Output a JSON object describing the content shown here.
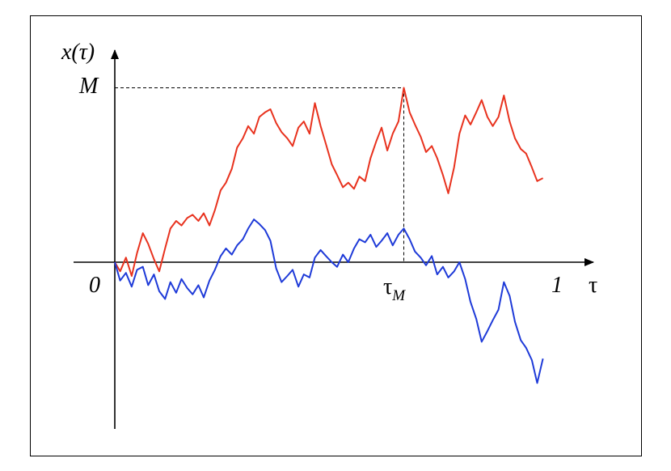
{
  "labels": {
    "y_axis": "x(τ)",
    "max": "M",
    "origin": "0",
    "x_end": "1",
    "x_axis": "τ",
    "tau_m_main": "τ",
    "tau_m_sub": "M"
  },
  "colors": {
    "red_path": "#e8321e",
    "blue_path": "#1e3ad8",
    "axes": "#000000"
  },
  "chart_data": {
    "type": "line",
    "xlim": [
      0,
      1
    ],
    "x_ticks": [
      "0",
      "1"
    ],
    "y_marks": [
      "M"
    ],
    "grid": false,
    "legend": "none",
    "series": [
      {
        "values": [
          [
            0.0,
            0.0
          ],
          [
            0.012,
            -0.06
          ],
          [
            0.025,
            0.03
          ],
          [
            0.038,
            -0.09
          ],
          [
            0.05,
            0.06
          ],
          [
            0.063,
            0.19
          ],
          [
            0.075,
            0.12
          ],
          [
            0.088,
            0.02
          ],
          [
            0.1,
            -0.06
          ],
          [
            0.113,
            0.09
          ],
          [
            0.125,
            0.22
          ],
          [
            0.138,
            0.27
          ],
          [
            0.15,
            0.24
          ],
          [
            0.163,
            0.29
          ],
          [
            0.175,
            0.31
          ],
          [
            0.188,
            0.27
          ],
          [
            0.2,
            0.32
          ],
          [
            0.213,
            0.24
          ],
          [
            0.225,
            0.34
          ],
          [
            0.238,
            0.47
          ],
          [
            0.25,
            0.52
          ],
          [
            0.263,
            0.61
          ],
          [
            0.275,
            0.75
          ],
          [
            0.288,
            0.81
          ],
          [
            0.3,
            0.89
          ],
          [
            0.313,
            0.84
          ],
          [
            0.325,
            0.95
          ],
          [
            0.338,
            0.98
          ],
          [
            0.35,
            1.0
          ],
          [
            0.363,
            0.91
          ],
          [
            0.375,
            0.85
          ],
          [
            0.388,
            0.81
          ],
          [
            0.4,
            0.76
          ],
          [
            0.413,
            0.88
          ],
          [
            0.425,
            0.92
          ],
          [
            0.438,
            0.84
          ],
          [
            0.45,
            1.04
          ],
          [
            0.463,
            0.89
          ],
          [
            0.475,
            0.77
          ],
          [
            0.488,
            0.64
          ],
          [
            0.5,
            0.57
          ],
          [
            0.513,
            0.49
          ],
          [
            0.525,
            0.52
          ],
          [
            0.538,
            0.48
          ],
          [
            0.55,
            0.56
          ],
          [
            0.563,
            0.53
          ],
          [
            0.575,
            0.68
          ],
          [
            0.588,
            0.79
          ],
          [
            0.6,
            0.88
          ],
          [
            0.613,
            0.73
          ],
          [
            0.625,
            0.84
          ],
          [
            0.638,
            0.92
          ],
          [
            0.65,
            1.14
          ],
          [
            0.663,
            0.98
          ],
          [
            0.675,
            0.9
          ],
          [
            0.688,
            0.82
          ],
          [
            0.7,
            0.72
          ],
          [
            0.713,
            0.76
          ],
          [
            0.725,
            0.68
          ],
          [
            0.738,
            0.57
          ],
          [
            0.75,
            0.45
          ],
          [
            0.763,
            0.62
          ],
          [
            0.775,
            0.84
          ],
          [
            0.788,
            0.96
          ],
          [
            0.8,
            0.9
          ],
          [
            0.813,
            0.98
          ],
          [
            0.825,
            1.06
          ],
          [
            0.838,
            0.95
          ],
          [
            0.85,
            0.89
          ],
          [
            0.863,
            0.95
          ],
          [
            0.875,
            1.09
          ],
          [
            0.888,
            0.92
          ],
          [
            0.9,
            0.81
          ],
          [
            0.913,
            0.74
          ],
          [
            0.925,
            0.71
          ],
          [
            0.938,
            0.62
          ],
          [
            0.95,
            0.53
          ],
          [
            0.963,
            0.55
          ]
        ]
      },
      {
        "values": [
          [
            0.0,
            0.0
          ],
          [
            0.012,
            -0.12
          ],
          [
            0.025,
            -0.07
          ],
          [
            0.038,
            -0.16
          ],
          [
            0.05,
            -0.05
          ],
          [
            0.063,
            -0.03
          ],
          [
            0.075,
            -0.15
          ],
          [
            0.088,
            -0.08
          ],
          [
            0.1,
            -0.19
          ],
          [
            0.113,
            -0.24
          ],
          [
            0.125,
            -0.13
          ],
          [
            0.138,
            -0.2
          ],
          [
            0.15,
            -0.11
          ],
          [
            0.163,
            -0.17
          ],
          [
            0.175,
            -0.21
          ],
          [
            0.188,
            -0.15
          ],
          [
            0.2,
            -0.23
          ],
          [
            0.213,
            -0.12
          ],
          [
            0.225,
            -0.05
          ],
          [
            0.238,
            0.04
          ],
          [
            0.25,
            0.09
          ],
          [
            0.263,
            0.05
          ],
          [
            0.275,
            0.11
          ],
          [
            0.288,
            0.15
          ],
          [
            0.3,
            0.22
          ],
          [
            0.313,
            0.28
          ],
          [
            0.325,
            0.25
          ],
          [
            0.338,
            0.21
          ],
          [
            0.35,
            0.14
          ],
          [
            0.363,
            -0.04
          ],
          [
            0.375,
            -0.13
          ],
          [
            0.388,
            -0.09
          ],
          [
            0.4,
            -0.05
          ],
          [
            0.413,
            -0.16
          ],
          [
            0.425,
            -0.08
          ],
          [
            0.438,
            -0.1
          ],
          [
            0.45,
            0.03
          ],
          [
            0.463,
            0.08
          ],
          [
            0.475,
            0.04
          ],
          [
            0.488,
            0.0
          ],
          [
            0.5,
            -0.03
          ],
          [
            0.513,
            0.05
          ],
          [
            0.525,
            0.0
          ],
          [
            0.538,
            0.09
          ],
          [
            0.55,
            0.15
          ],
          [
            0.563,
            0.13
          ],
          [
            0.575,
            0.18
          ],
          [
            0.588,
            0.1
          ],
          [
            0.6,
            0.14
          ],
          [
            0.613,
            0.19
          ],
          [
            0.625,
            0.11
          ],
          [
            0.638,
            0.18
          ],
          [
            0.65,
            0.22
          ],
          [
            0.663,
            0.15
          ],
          [
            0.675,
            0.07
          ],
          [
            0.688,
            0.03
          ],
          [
            0.7,
            -0.02
          ],
          [
            0.713,
            0.04
          ],
          [
            0.725,
            -0.08
          ],
          [
            0.738,
            -0.03
          ],
          [
            0.75,
            -0.1
          ],
          [
            0.763,
            -0.06
          ],
          [
            0.775,
            0.0
          ],
          [
            0.788,
            -0.11
          ],
          [
            0.8,
            -0.26
          ],
          [
            0.813,
            -0.37
          ],
          [
            0.825,
            -0.52
          ],
          [
            0.838,
            -0.45
          ],
          [
            0.85,
            -0.38
          ],
          [
            0.863,
            -0.31
          ],
          [
            0.875,
            -0.13
          ],
          [
            0.888,
            -0.22
          ],
          [
            0.9,
            -0.39
          ],
          [
            0.913,
            -0.51
          ],
          [
            0.925,
            -0.56
          ],
          [
            0.938,
            -0.64
          ],
          [
            0.95,
            -0.79
          ],
          [
            0.963,
            -0.63
          ]
        ]
      }
    ],
    "annotations": {
      "max_point": [
        0.65,
        1.14
      ]
    }
  }
}
